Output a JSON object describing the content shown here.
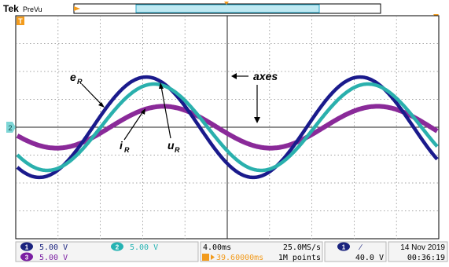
{
  "header": {
    "brand": "Tek",
    "mode": "PreVu"
  },
  "markers": {
    "trigger_level": "T",
    "ch2_marker": "2"
  },
  "annotations": {
    "e_r": "e",
    "e_r_sub": "R",
    "i_r": "i",
    "i_r_sub": "R",
    "u_r": "u",
    "u_r_sub": "R",
    "axes": "axes"
  },
  "channels": [
    {
      "id": "1",
      "scale": "5.00 V",
      "color": "#1a237e"
    },
    {
      "id": "2",
      "scale": "5.00 V",
      "color": "#26b3b3"
    },
    {
      "id": "3",
      "scale": "5.00 V",
      "color": "#7b1fa2"
    }
  ],
  "timebase": {
    "scale": "4.00ms",
    "sample_rate": "25.0MS/s",
    "offset": "39.60000ms",
    "record_length": "1M points"
  },
  "trigger": {
    "channel": "1",
    "slope": "∕",
    "level": "40.0 V"
  },
  "datetime": {
    "date": "14 Nov 2019",
    "time": "00:36:19"
  },
  "waveforms": {
    "e_r": {
      "amplitude_div": 1.8,
      "color": "#1a1a8c"
    },
    "u_r": {
      "amplitude_div": 1.55,
      "color": "#2ab0ad"
    },
    "i_r": {
      "amplitude_div": 0.75,
      "color": "#8a2a99"
    }
  }
}
